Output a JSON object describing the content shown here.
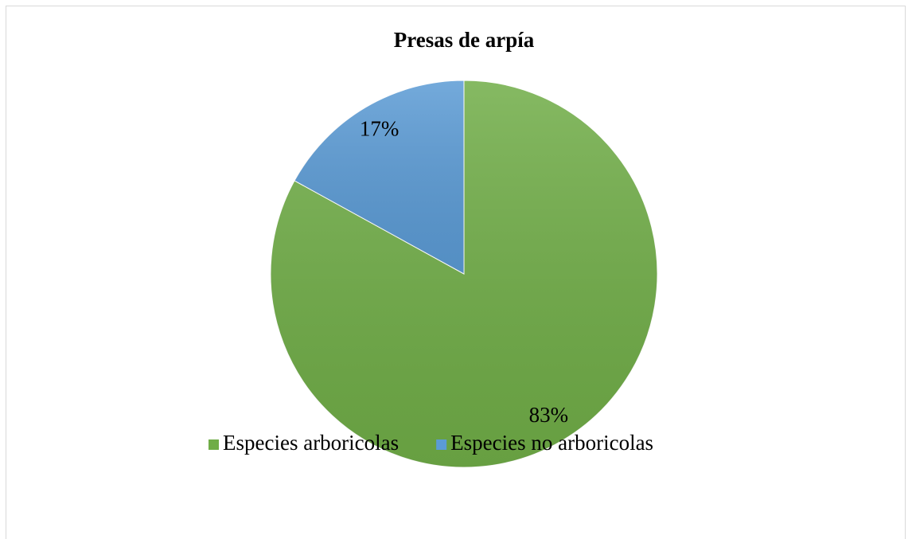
{
  "chart_data": {
    "type": "pie",
    "title": "Presas de arpía",
    "categories": [
      "Especies arboricolas",
      "Especies no arboricolas"
    ],
    "values": [
      83,
      17
    ],
    "value_labels": [
      "83%",
      "17%"
    ],
    "colors": [
      "#70ad47",
      "#5b9bd5"
    ],
    "legend": "bottom"
  }
}
